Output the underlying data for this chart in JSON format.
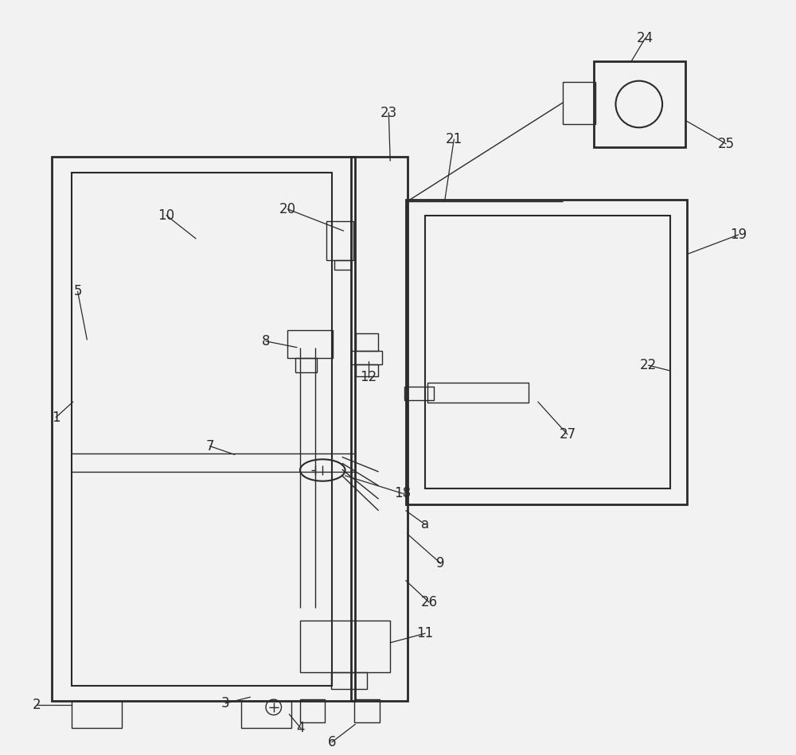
{
  "bg_color": "#f2f2f2",
  "line_color": "#2a2a2a",
  "lw_main": 2.0,
  "lw_inner": 1.5,
  "lw_thin": 1.0,
  "lw_leader": 0.9
}
